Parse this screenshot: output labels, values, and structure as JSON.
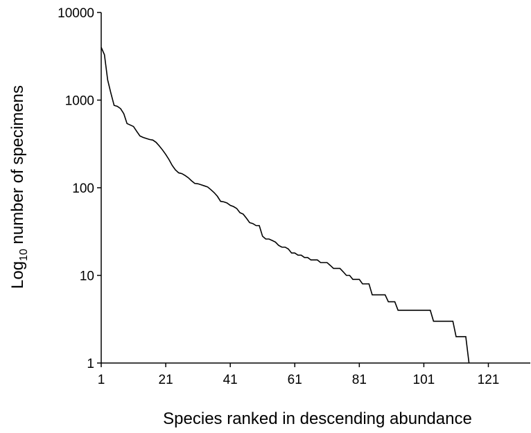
{
  "chart_data": {
    "type": "line",
    "xlabel": "Species ranked in descending abundance",
    "ylabel": {
      "text": "Log",
      "sub": "10",
      "rest": " number of specimens"
    },
    "x": [
      1,
      2,
      3,
      4,
      5,
      6,
      7,
      8,
      9,
      10,
      11,
      12,
      13,
      14,
      15,
      16,
      17,
      18,
      19,
      20,
      21,
      22,
      23,
      24,
      25,
      26,
      27,
      28,
      29,
      30,
      31,
      32,
      33,
      34,
      35,
      36,
      37,
      38,
      39,
      40,
      41,
      42,
      43,
      44,
      45,
      46,
      47,
      48,
      49,
      50,
      51,
      52,
      53,
      54,
      55,
      56,
      57,
      58,
      59,
      60,
      61,
      62,
      63,
      64,
      65,
      66,
      67,
      68,
      69,
      70,
      71,
      72,
      73,
      74,
      75,
      76,
      77,
      78,
      79,
      80,
      81,
      82,
      83,
      84,
      85,
      86,
      87,
      88,
      89,
      90,
      91,
      92,
      93,
      94,
      95,
      96,
      97,
      98,
      99,
      100,
      101,
      102,
      103,
      104,
      105,
      106,
      107,
      108,
      109,
      110,
      111,
      112,
      113,
      114,
      115
    ],
    "values": [
      4000,
      3300,
      1700,
      1200,
      870,
      850,
      800,
      700,
      540,
      520,
      500,
      440,
      390,
      375,
      365,
      355,
      350,
      330,
      300,
      270,
      240,
      210,
      180,
      160,
      148,
      145,
      138,
      130,
      120,
      112,
      111,
      108,
      105,
      102,
      95,
      88,
      80,
      70,
      69,
      67,
      63,
      61,
      58,
      52,
      50,
      45,
      40,
      39,
      37,
      37,
      28,
      26,
      26,
      25,
      24,
      22,
      21,
      21,
      20,
      18,
      18,
      17,
      17,
      16,
      16,
      15,
      15,
      15,
      14,
      14,
      14,
      13,
      12,
      12,
      12,
      11,
      10,
      10,
      9,
      9,
      9,
      8,
      8,
      8,
      6,
      6,
      6,
      6,
      6,
      5,
      5,
      5,
      4,
      4,
      4,
      4,
      4,
      4,
      4,
      4,
      4,
      4,
      4,
      3,
      3,
      3,
      3,
      3,
      3,
      3,
      2,
      2,
      2,
      2,
      1
    ],
    "color": "#000000",
    "xlim": [
      1,
      134
    ],
    "xticks": [
      1,
      21,
      41,
      61,
      81,
      101,
      121
    ],
    "ylim": [
      1,
      10000
    ],
    "yticks": [
      1,
      10,
      100,
      1000,
      10000
    ],
    "ylog": true
  }
}
